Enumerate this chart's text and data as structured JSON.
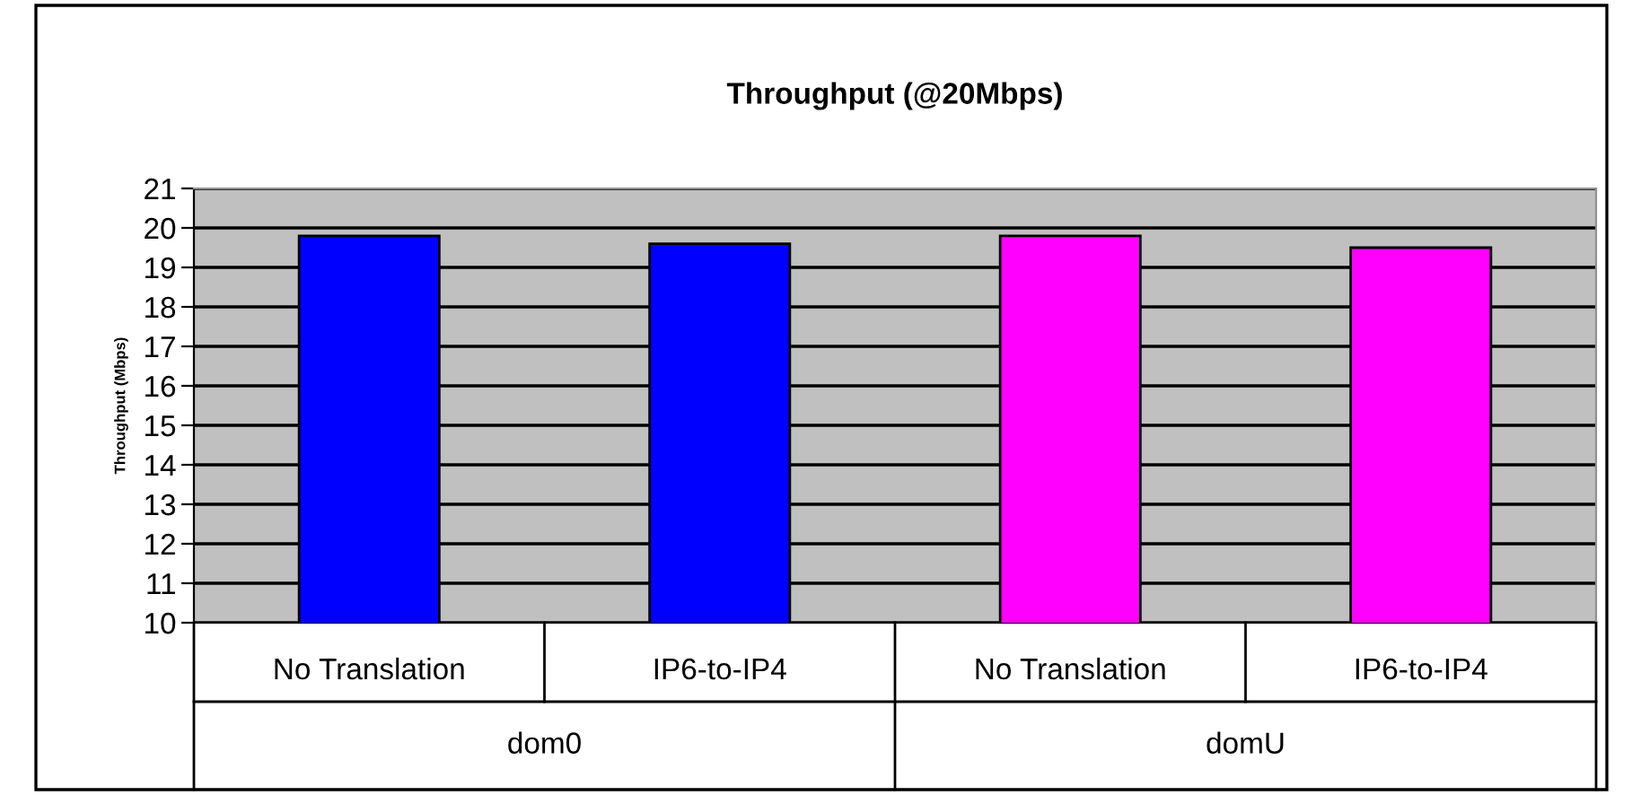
{
  "chart_data": {
    "type": "bar",
    "title": "Throughput (@20Mbps)",
    "ylabel": "Throughput (Mbps)",
    "categories": [
      "No Translation",
      "IP6-to-IP4",
      "No Translation",
      "IP6-to-IP4"
    ],
    "values": [
      19.8,
      19.6,
      19.8,
      19.5
    ],
    "colors": [
      "#0000ff",
      "#0000ff",
      "#ff00ff",
      "#ff00ff"
    ],
    "ylim": [
      10,
      21
    ],
    "yticks": [
      10,
      11,
      12,
      13,
      14,
      15,
      16,
      17,
      18,
      19,
      20,
      21
    ],
    "grid": "y",
    "annotations": [
      "dom0",
      "domU"
    ]
  }
}
